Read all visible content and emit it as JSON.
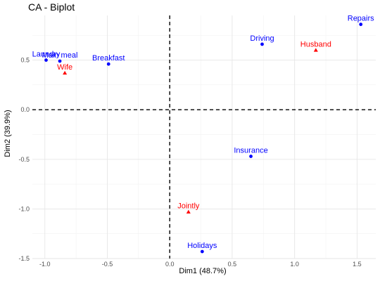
{
  "chart_data": {
    "type": "scatter",
    "title": "CA - Biplot",
    "xlabel": "Dim1 (48.7%)",
    "ylabel": "Dim2 (39.9%)",
    "xlim": [
      -1.1,
      1.65
    ],
    "ylim": [
      -1.5,
      0.95
    ],
    "xticks": [
      -1.0,
      -0.5,
      0.0,
      0.5,
      1.0,
      1.5
    ],
    "xtick_labels": [
      "-1.0",
      "-0.5",
      "0.0",
      "0.5",
      "1.0",
      "1.5"
    ],
    "yticks": [
      -1.5,
      -1.0,
      -0.5,
      0.0,
      0.5
    ],
    "ytick_labels": [
      "-1.5",
      "-1.0",
      "-0.5",
      "0.0",
      "0.5"
    ],
    "grid": true,
    "reference_lines": {
      "x": 0,
      "y": 0,
      "style": "dashed"
    },
    "series": [
      {
        "marker": "circle",
        "color": "#0000FF",
        "points": [
          {
            "label": "Laundry",
            "x": -0.99,
            "y": 0.5
          },
          {
            "label": "Main meal",
            "x": -0.88,
            "y": 0.49
          },
          {
            "label": "Breakfast",
            "x": -0.49,
            "y": 0.46
          },
          {
            "label": "Driving",
            "x": 0.74,
            "y": 0.66
          },
          {
            "label": "Repairs",
            "x": 1.53,
            "y": 0.86
          },
          {
            "label": "Insurance",
            "x": 0.65,
            "y": -0.47
          },
          {
            "label": "Holidays",
            "x": 0.26,
            "y": -1.43
          }
        ]
      },
      {
        "marker": "triangle",
        "color": "#FF0000",
        "points": [
          {
            "label": "Wife",
            "x": -0.84,
            "y": 0.37
          },
          {
            "label": "Husband",
            "x": 1.17,
            "y": 0.6
          },
          {
            "label": "Jointly",
            "x": 0.15,
            "y": -1.03
          }
        ]
      }
    ]
  }
}
